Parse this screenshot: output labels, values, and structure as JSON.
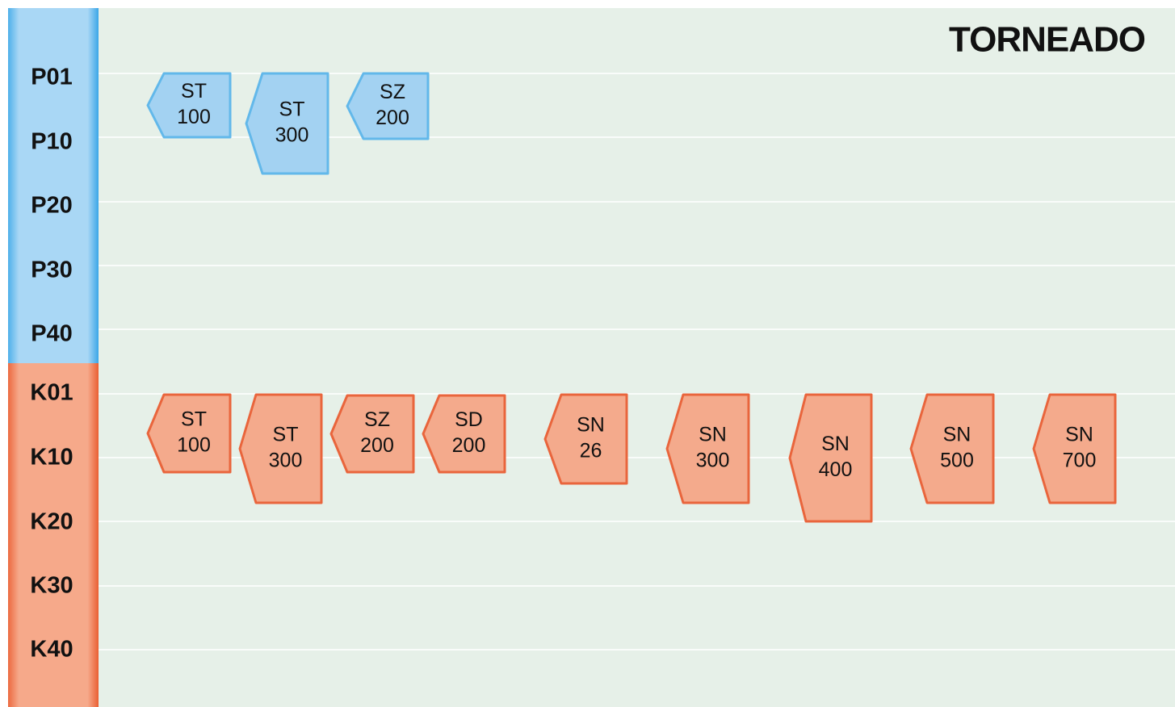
{
  "title": "TORNEADO",
  "groups": [
    {
      "rows": [
        "P01",
        "P10",
        "P20",
        "P30",
        "P40"
      ],
      "tags": [
        [
          "ST",
          "100"
        ],
        [
          "ST",
          "300"
        ],
        [
          "SZ",
          "200"
        ]
      ]
    },
    {
      "rows": [
        "K01",
        "K10",
        "K20",
        "K30",
        "K40"
      ],
      "tags": [
        [
          "ST",
          "100"
        ],
        [
          "ST",
          "300"
        ],
        [
          "SZ",
          "200"
        ],
        [
          "SD",
          "200"
        ],
        [
          "SN",
          "26"
        ],
        [
          "SN",
          "300"
        ],
        [
          "SN",
          "400"
        ],
        [
          "SN",
          "500"
        ],
        [
          "SN",
          "700"
        ]
      ]
    }
  ]
}
